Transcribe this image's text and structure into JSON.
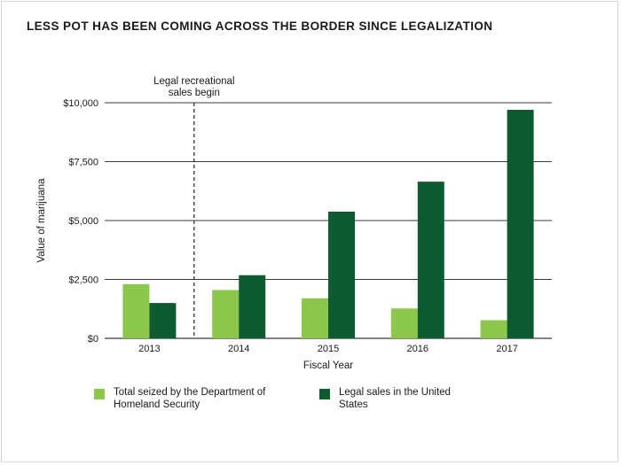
{
  "colors": {
    "seized": "#8cc64b",
    "legal": "#0e5b32",
    "grid": "#3a3a3a",
    "text": "#1a1a1a"
  },
  "chart_data": {
    "type": "bar",
    "title": "LESS POT HAS BEEN COMING ACROSS THE BORDER SINCE LEGALIZATION",
    "xlabel": "Fiscal Year",
    "ylabel": "Value of marijuana",
    "categories": [
      "2013",
      "2014",
      "2015",
      "2016",
      "2017"
    ],
    "ylim": [
      0,
      10000
    ],
    "yticks": [
      0,
      2500,
      5000,
      7500,
      10000
    ],
    "ytick_labels": [
      "$0",
      "$2,500",
      "$5,000",
      "$7,500",
      "$10,000"
    ],
    "series": [
      {
        "name": "Total seized by the Department of Homeland Security",
        "color_key": "seized",
        "values": [
          2300,
          2050,
          1700,
          1270,
          770
        ]
      },
      {
        "name": "Legal sales in the United States",
        "color_key": "legal",
        "values": [
          1500,
          2680,
          5380,
          6650,
          9700
        ]
      }
    ],
    "annotation": {
      "text": "Legal recreational sales begin",
      "between": [
        "2013",
        "2014"
      ]
    },
    "legend": {
      "position": "bottom"
    },
    "grid": true
  }
}
